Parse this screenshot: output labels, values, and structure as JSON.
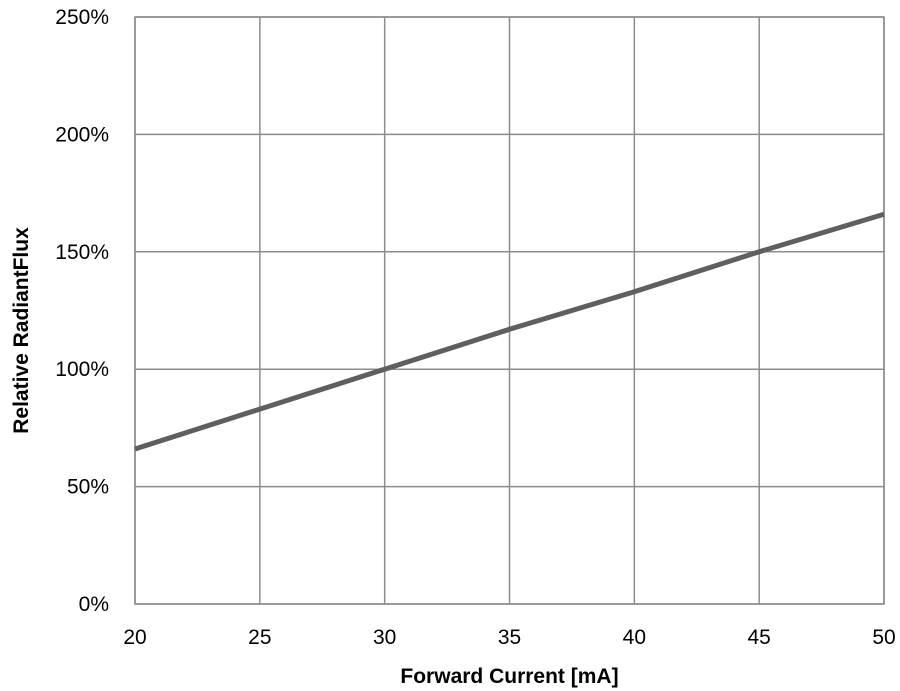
{
  "chart_data": {
    "type": "line",
    "xlabel": "Forward Current [mA]",
    "ylabel": "Relative RadiantFlux",
    "xlim": [
      20,
      50
    ],
    "ylim": [
      0,
      250
    ],
    "x_ticks": [
      20,
      25,
      30,
      35,
      40,
      45,
      50
    ],
    "y_ticks": [
      0,
      50,
      100,
      150,
      200,
      250
    ],
    "x_tick_labels": [
      "20",
      "25",
      "30",
      "35",
      "40",
      "45",
      "50"
    ],
    "y_tick_labels": [
      "0%",
      "50%",
      "100%",
      "150%",
      "200%",
      "250%"
    ],
    "grid": true,
    "legend": "none",
    "series": [
      {
        "x": [
          20,
          25,
          30,
          35,
          40,
          45,
          50
        ],
        "y": [
          66,
          83,
          100,
          117,
          133,
          150,
          166
        ],
        "color": "#5f5f5f"
      }
    ]
  }
}
